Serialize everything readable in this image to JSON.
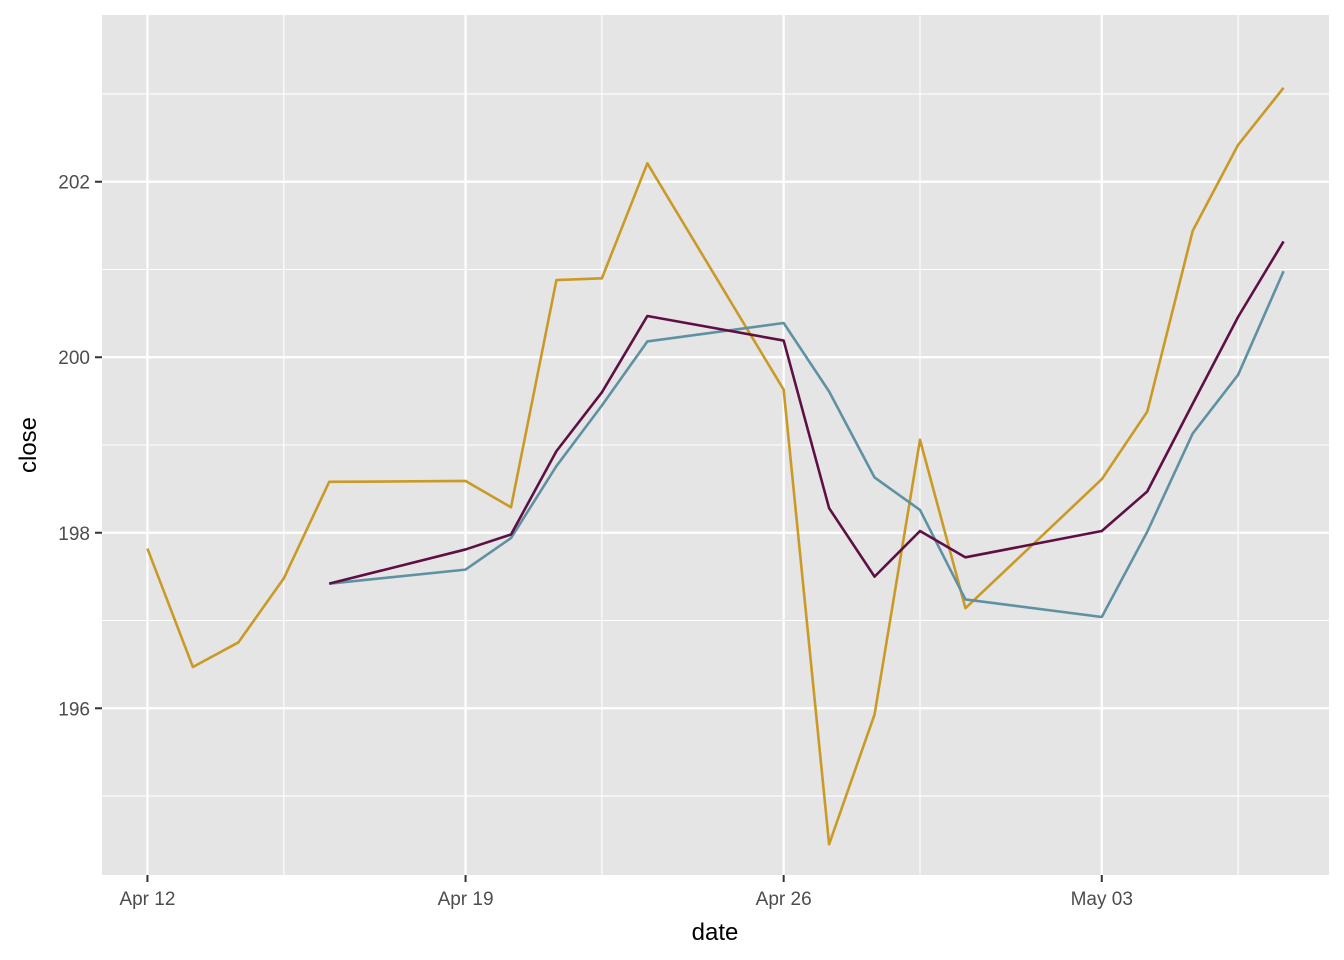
{
  "chart_data": {
    "type": "line",
    "xlabel": "date",
    "ylabel": "close",
    "x_axis_kind": "date",
    "xlim": [
      "2024-04-11",
      "2024-05-08"
    ],
    "ylim": [
      194.1,
      203.9
    ],
    "x_ticks": [
      {
        "date": "2024-04-12",
        "label": "Apr 12"
      },
      {
        "date": "2024-04-19",
        "label": "Apr 19"
      },
      {
        "date": "2024-04-26",
        "label": "Apr 26"
      },
      {
        "date": "2024-05-03",
        "label": "May 03"
      }
    ],
    "x_minor_gridlines": [
      "2024-04-15",
      "2024-04-22",
      "2024-04-29",
      "2024-05-06"
    ],
    "y_ticks": [
      196,
      198,
      200,
      202
    ],
    "y_minor_gridlines": [
      195,
      197,
      199,
      201,
      203
    ],
    "grid": true,
    "legend": "none",
    "background_color": "#e5e5e5",
    "grid_color": "#ffffff",
    "series": [
      {
        "color": "#c99a26",
        "points": [
          {
            "x": "2024-04-12",
            "y": 197.82
          },
          {
            "x": "2024-04-13",
            "y": 196.47
          },
          {
            "x": "2024-04-14",
            "y": 196.75
          },
          {
            "x": "2024-04-15",
            "y": 197.48
          },
          {
            "x": "2024-04-16",
            "y": 198.58
          },
          {
            "x": "2024-04-19",
            "y": 198.59
          },
          {
            "x": "2024-04-20",
            "y": 198.29
          },
          {
            "x": "2024-04-21",
            "y": 200.88
          },
          {
            "x": "2024-04-22",
            "y": 200.9
          },
          {
            "x": "2024-04-23",
            "y": 202.21
          },
          {
            "x": "2024-04-26",
            "y": 199.63
          },
          {
            "x": "2024-04-27",
            "y": 194.45
          },
          {
            "x": "2024-04-28",
            "y": 195.93
          },
          {
            "x": "2024-04-29",
            "y": 199.06
          },
          {
            "x": "2024-04-30",
            "y": 197.14
          },
          {
            "x": "2024-05-03",
            "y": 198.61
          },
          {
            "x": "2024-05-04",
            "y": 199.38
          },
          {
            "x": "2024-05-05",
            "y": 201.44
          },
          {
            "x": "2024-05-06",
            "y": 202.42
          },
          {
            "x": "2024-05-07",
            "y": 203.07
          }
        ]
      },
      {
        "color": "#5f91a3",
        "points": [
          {
            "x": "2024-04-16",
            "y": 197.42
          },
          {
            "x": "2024-04-19",
            "y": 197.58
          },
          {
            "x": "2024-04-20",
            "y": 197.94
          },
          {
            "x": "2024-04-21",
            "y": 198.76
          },
          {
            "x": "2024-04-22",
            "y": 199.45
          },
          {
            "x": "2024-04-23",
            "y": 200.18
          },
          {
            "x": "2024-04-26",
            "y": 200.39
          },
          {
            "x": "2024-04-27",
            "y": 199.61
          },
          {
            "x": "2024-04-28",
            "y": 198.63
          },
          {
            "x": "2024-04-29",
            "y": 198.26
          },
          {
            "x": "2024-04-30",
            "y": 197.24
          },
          {
            "x": "2024-05-03",
            "y": 197.04
          },
          {
            "x": "2024-05-04",
            "y": 198.01
          },
          {
            "x": "2024-05-05",
            "y": 199.13
          },
          {
            "x": "2024-05-06",
            "y": 199.8
          },
          {
            "x": "2024-05-07",
            "y": 200.98
          }
        ]
      },
      {
        "color": "#5e1045",
        "points": [
          {
            "x": "2024-04-16",
            "y": 197.42
          },
          {
            "x": "2024-04-19",
            "y": 197.81
          },
          {
            "x": "2024-04-20",
            "y": 197.98
          },
          {
            "x": "2024-04-21",
            "y": 198.93
          },
          {
            "x": "2024-04-22",
            "y": 199.6
          },
          {
            "x": "2024-04-23",
            "y": 200.47
          },
          {
            "x": "2024-04-26",
            "y": 200.19
          },
          {
            "x": "2024-04-27",
            "y": 198.28
          },
          {
            "x": "2024-04-28",
            "y": 197.5
          },
          {
            "x": "2024-04-29",
            "y": 198.02
          },
          {
            "x": "2024-04-30",
            "y": 197.72
          },
          {
            "x": "2024-05-03",
            "y": 198.02
          },
          {
            "x": "2024-05-04",
            "y": 198.47
          },
          {
            "x": "2024-05-05",
            "y": 199.47
          },
          {
            "x": "2024-05-06",
            "y": 200.46
          },
          {
            "x": "2024-05-07",
            "y": 201.32
          }
        ]
      }
    ]
  }
}
